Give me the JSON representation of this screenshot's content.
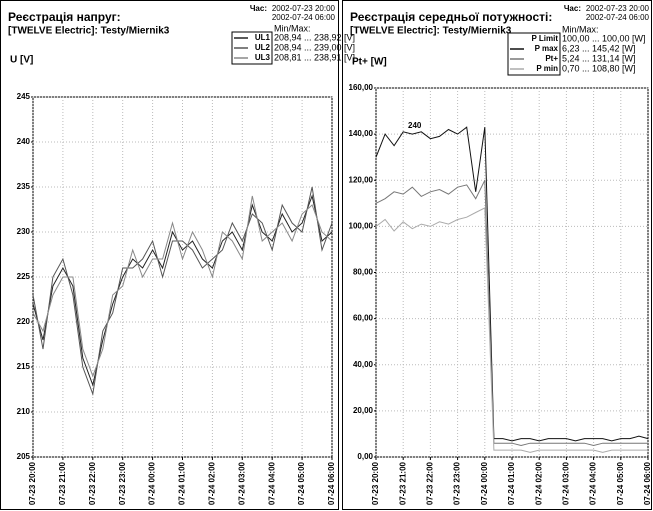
{
  "chart_data": [
    {
      "type": "line",
      "title": "Реєстрація напруг:",
      "subtitle": "[TWELVE Electric]: Testy/Miernik3",
      "y_label": "U  [V]",
      "time_label": "Час:",
      "time_from": "2002-07-23 20:00",
      "time_to": "2002-07-24 06:00",
      "minmax_label": "Min/Max:",
      "xlim": [
        "07-23 20:00",
        "07-24 06:00"
      ],
      "xticks": [
        "07-23 20:00",
        "07-23 21:00",
        "07-23 22:00",
        "07-23 23:00",
        "07-24 00:00",
        "07-24 01:00",
        "07-24 02:00",
        "07-24 03:00",
        "07-24 04:00",
        "07-24 05:00",
        "07-24 06:00"
      ],
      "ylim": [
        205,
        245
      ],
      "yticks": [
        205,
        210,
        215,
        220,
        225,
        230,
        235,
        240,
        245
      ],
      "grid": true,
      "x": [
        "07-23 20:00",
        "07-23 20:20",
        "07-23 20:40",
        "07-23 21:00",
        "07-23 21:20",
        "07-23 21:40",
        "07-23 22:00",
        "07-23 22:20",
        "07-23 22:40",
        "07-23 23:00",
        "07-23 23:20",
        "07-23 23:40",
        "07-24 00:00",
        "07-24 00:20",
        "07-24 00:40",
        "07-24 01:00",
        "07-24 01:20",
        "07-24 01:40",
        "07-24 02:00",
        "07-24 02:20",
        "07-24 02:40",
        "07-24 03:00",
        "07-24 03:20",
        "07-24 03:40",
        "07-24 04:00",
        "07-24 04:20",
        "07-24 04:40",
        "07-24 05:00",
        "07-24 05:20",
        "07-24 05:40",
        "07-24 06:00"
      ],
      "series": [
        {
          "name": "UL1",
          "range": "208,94 ... 238,92 [V]",
          "color": "#222222",
          "values": [
            222,
            218,
            224,
            226,
            224,
            216,
            213,
            218,
            222,
            225,
            227,
            226,
            228,
            226,
            230,
            228,
            229,
            227,
            226,
            229,
            230,
            228,
            233,
            230,
            229,
            232,
            230,
            231,
            234,
            229,
            230
          ]
        },
        {
          "name": "UL2",
          "range": "208,94 ... 239,00 [V]",
          "color": "#555555",
          "values": [
            223,
            217,
            225,
            227,
            223,
            215,
            212,
            219,
            221,
            226,
            226,
            227,
            229,
            225,
            229,
            229,
            228,
            226,
            227,
            228,
            231,
            229,
            232,
            231,
            228,
            233,
            231,
            230,
            235,
            228,
            231
          ]
        },
        {
          "name": "UL3",
          "range": "208,81 ... 238,91 [V]",
          "color": "#888888",
          "values": [
            221,
            219,
            223,
            225,
            225,
            217,
            214,
            217,
            223,
            224,
            228,
            225,
            227,
            227,
            231,
            227,
            230,
            228,
            225,
            230,
            229,
            227,
            234,
            229,
            230,
            231,
            229,
            232,
            233,
            230,
            229
          ]
        }
      ]
    },
    {
      "type": "line",
      "title": "Реєстрація середньої потужності:",
      "subtitle": "[TWELVE Electric]: Testy/Miernik3",
      "y_label": "Pt+  [W]",
      "time_label": "Час:",
      "time_from": "2002-07-23 20:00",
      "time_to": "2002-07-24 06:00",
      "minmax_label": "Min/Max:",
      "annotation": "240",
      "xlim": [
        "07-23 20:00",
        "07-24 06:00"
      ],
      "xticks": [
        "07-23 20:00",
        "07-23 21:00",
        "07-23 22:00",
        "07-23 23:00",
        "07-24 00:00",
        "07-24 01:00",
        "07-24 02:00",
        "07-24 03:00",
        "07-24 04:00",
        "07-24 05:00",
        "07-24 06:00"
      ],
      "ylim": [
        0,
        160
      ],
      "yticks": [
        {
          "value": 0,
          "label": "0,00"
        },
        {
          "value": 20,
          "label": "20,00"
        },
        {
          "value": 40,
          "label": "40,00"
        },
        {
          "value": 60,
          "label": "60,00"
        },
        {
          "value": 80,
          "label": "80,00"
        },
        {
          "value": 100,
          "label": "100,00"
        },
        {
          "value": 120,
          "label": "120,00"
        },
        {
          "value": 140,
          "label": "140,00"
        },
        {
          "value": 160,
          "label": "160,00"
        }
      ],
      "grid": true,
      "x": [
        "07-23 20:00",
        "07-23 20:20",
        "07-23 20:40",
        "07-23 21:00",
        "07-23 21:20",
        "07-23 21:40",
        "07-23 22:00",
        "07-23 22:20",
        "07-23 22:40",
        "07-23 23:00",
        "07-23 23:20",
        "07-23 23:40",
        "07-24 00:00",
        "07-24 00:20",
        "07-24 00:40",
        "07-24 01:00",
        "07-24 01:20",
        "07-24 01:40",
        "07-24 02:00",
        "07-24 02:20",
        "07-24 02:40",
        "07-24 03:00",
        "07-24 03:20",
        "07-24 03:40",
        "07-24 04:00",
        "07-24 04:20",
        "07-24 04:40",
        "07-24 05:00",
        "07-24 05:20",
        "07-24 05:40",
        "07-24 06:00"
      ],
      "series": [
        {
          "name": "P Limit",
          "range": "100,00 ... 100,00 [W]",
          "color": "none",
          "values": [
            100,
            100,
            100,
            100,
            100,
            100,
            100,
            100,
            100,
            100,
            100,
            100,
            100,
            100,
            100,
            100,
            100,
            100,
            100,
            100,
            100,
            100,
            100,
            100,
            100,
            100,
            100,
            100,
            100,
            100,
            100
          ]
        },
        {
          "name": "P max",
          "range": "6,23 ... 145,42 [W]",
          "color": "#111111",
          "values": [
            130,
            140,
            135,
            141,
            140,
            141,
            138,
            139,
            142,
            140,
            143,
            115,
            143,
            8,
            8,
            7,
            8,
            8,
            7,
            8,
            8,
            8,
            7,
            8,
            8,
            8,
            7,
            8,
            8,
            9,
            8
          ]
        },
        {
          "name": "Pt+",
          "range": "5,24 ... 131,14 [W]",
          "color": "#777777",
          "values": [
            110,
            112,
            115,
            114,
            117,
            113,
            115,
            116,
            114,
            117,
            118,
            112,
            120,
            6,
            6,
            6,
            5,
            6,
            6,
            6,
            6,
            6,
            6,
            6,
            5,
            6,
            6,
            6,
            6,
            6,
            6
          ]
        },
        {
          "name": "P min",
          "range": "0,70 ... 108,80 [W]",
          "color": "#aaaaaa",
          "values": [
            100,
            103,
            98,
            102,
            99,
            101,
            100,
            102,
            101,
            103,
            104,
            106,
            108,
            3,
            3,
            3,
            3,
            2,
            3,
            3,
            3,
            3,
            3,
            3,
            3,
            2,
            3,
            3,
            3,
            3,
            3
          ]
        }
      ]
    }
  ]
}
